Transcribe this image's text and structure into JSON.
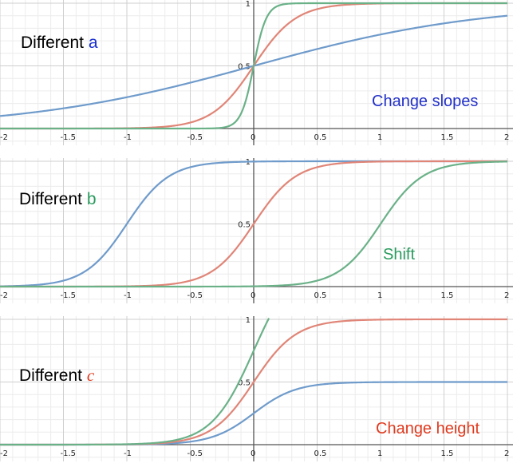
{
  "colors": {
    "blue": "#6f9bcb",
    "red": "#e08577",
    "green": "#6ab188",
    "grid_major": "#cfcfcf",
    "grid_minor": "#ececec",
    "axis": "#555555"
  },
  "chart_data": [
    {
      "type": "line",
      "title_prefix": "Different ",
      "param": "a",
      "param_color": "#1a2fd1",
      "annotation": "Change slopes",
      "annotation_color": "#2230c8",
      "xlim": [
        -2,
        2
      ],
      "ylim": [
        0,
        1
      ],
      "x_ticks": [
        "-2",
        "-1.5",
        "-1",
        "-0.5",
        "0",
        "0.5",
        "1",
        "1.5",
        "2"
      ],
      "y_ticks": [
        "0.5",
        "1"
      ],
      "grid": true,
      "series": [
        {
          "color": "blue",
          "formula": "1/(1+exp(-a*x))",
          "a": 1.1,
          "b": 0,
          "c": 1
        },
        {
          "color": "red",
          "formula": "1/(1+exp(-a*x))",
          "a": 6,
          "b": 0,
          "c": 1
        },
        {
          "color": "green",
          "formula": "1/(1+exp(-a*x))",
          "a": 20,
          "b": 0,
          "c": 1
        }
      ]
    },
    {
      "type": "line",
      "title_prefix": "Different ",
      "param": "b",
      "param_color": "#2a9a5e",
      "annotation": "Shift",
      "annotation_color": "#2a9a5e",
      "xlim": [
        -2,
        2
      ],
      "ylim": [
        0,
        1
      ],
      "x_ticks": [
        "-2",
        "-1.5",
        "-1",
        "-0.5",
        "0",
        "0.5",
        "1",
        "1.5",
        "2"
      ],
      "y_ticks": [
        "0.5",
        "1"
      ],
      "grid": true,
      "series": [
        {
          "color": "blue",
          "formula": "1/(1+exp(-a*(x-b)))",
          "a": 6,
          "b": -1,
          "c": 1
        },
        {
          "color": "red",
          "formula": "1/(1+exp(-a*(x-b)))",
          "a": 6,
          "b": 0,
          "c": 1
        },
        {
          "color": "green",
          "formula": "1/(1+exp(-a*(x-b)))",
          "a": 6,
          "b": 1,
          "c": 1
        }
      ]
    },
    {
      "type": "line",
      "title_prefix": "Different ",
      "param": "c",
      "param_color": "#e03a1e",
      "annotation": "Change height",
      "annotation_color": "#e03a1e",
      "xlim": [
        -2,
        2
      ],
      "ylim": [
        0,
        1
      ],
      "x_ticks": [
        "-2",
        "-1.5",
        "-1",
        "-0.5",
        "0",
        "0.5",
        "1",
        "1.5",
        "2"
      ],
      "y_ticks": [
        "0.5",
        "1"
      ],
      "grid": true,
      "series": [
        {
          "color": "blue",
          "formula": "c/(1+exp(-a*x))",
          "a": 6,
          "b": 0,
          "c": 0.5
        },
        {
          "color": "red",
          "formula": "c/(1+exp(-a*x))",
          "a": 6,
          "b": 0,
          "c": 1
        },
        {
          "color": "green",
          "formula": "c/(1+exp(-a*x))",
          "a": 6,
          "b": 0,
          "c": 1.5
        }
      ]
    }
  ]
}
